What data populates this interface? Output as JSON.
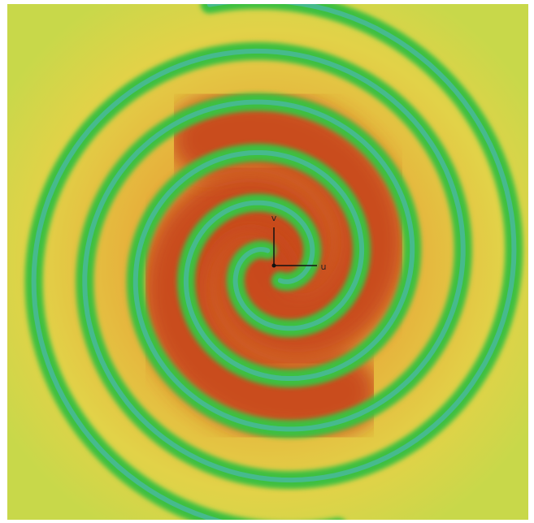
{
  "axes": {
    "v_label": "v",
    "u_label": "u"
  }
}
